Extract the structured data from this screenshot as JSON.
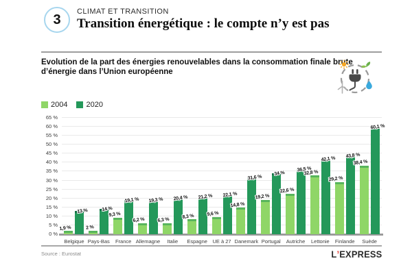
{
  "header": {
    "number": "3",
    "kicker": "CLIMAT ET TRANSITION",
    "title": "Transition énergétique : le compte n’y est pas"
  },
  "chart": {
    "title_line1": "Evolution de la part des énergies renouvelables dans la consommation finale brute",
    "title_line2": "d’énergie dans l’Union européenne"
  },
  "chart_data": {
    "type": "bar",
    "title": "Evolution de la part des énergies renouvelables dans la consommation finale brute d’énergie dans l’Union européenne",
    "categories": [
      "Belgique",
      "Pays-Bas",
      "France",
      "Allemagne",
      "Italie",
      "Espagne",
      "UE à 27",
      "Danemark",
      "Portugal",
      "Autriche",
      "Lettonie",
      "Finlande",
      "Suède"
    ],
    "series": [
      {
        "name": "2004",
        "color": "#8fd667",
        "cap_color": "#58b55c",
        "values": [
          1.9,
          2,
          9.3,
          6.2,
          6.3,
          8.3,
          9.6,
          14.8,
          19.2,
          22.6,
          32.8,
          29.2,
          38.4
        ],
        "labels": [
          "1,9 %",
          "2 %",
          "9,3 %",
          "6,2 %",
          "6,3 %",
          "8,3 %",
          "9,6 %",
          "14,8 %",
          "19,2 %",
          "22,6 %",
          "32,8 %",
          "29,2 %",
          "38,4 %"
        ]
      },
      {
        "name": "2020",
        "color": "#24985a",
        "cap_color": "#146f45",
        "values": [
          13,
          14,
          19.1,
          19.3,
          20.4,
          21.2,
          22.1,
          31.6,
          34,
          36.5,
          42.1,
          43.8,
          60.1
        ],
        "labels": [
          "13 %",
          "14 %",
          "19,1 %",
          "19,3 %",
          "20,4 %",
          "21,2 %",
          "22,1 %",
          "31,6 %",
          "34 %",
          "36,5 %",
          "42,1 %",
          "43,8 %",
          "60,1 %"
        ]
      }
    ],
    "xlabel": "",
    "ylabel": "",
    "ylim": [
      0,
      65
    ],
    "ytick_step": 5,
    "ytick_suffix": " %",
    "grid": true,
    "legend_position": "top-left"
  },
  "footer": {
    "source": "Source : Eurostat",
    "logo": {
      "l": "L",
      "apostrophe": "’",
      "rest": "EXPRESS"
    }
  }
}
